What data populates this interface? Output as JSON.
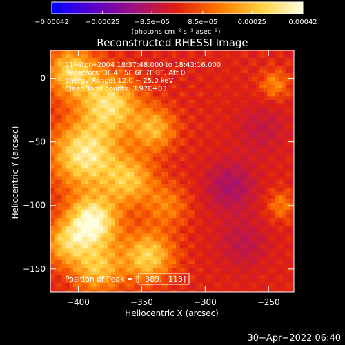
{
  "chart_data": {
    "type": "heatmap",
    "title": "Reconstructed RHESSI Image",
    "xlabel": "Heliocentric X (arcsec)",
    "ylabel": "Heliocentric Y (arcsec)",
    "xlim": [
      -422,
      -230
    ],
    "ylim": [
      -168,
      22
    ],
    "x_ticks": [
      -400,
      -350,
      -300,
      -250
    ],
    "x_tick_labels": [
      "−400",
      "−350",
      "−300",
      "−250"
    ],
    "y_ticks": [
      0,
      -50,
      -100,
      -150
    ],
    "y_tick_labels": [
      "0",
      "−50",
      "−100",
      "−150"
    ],
    "colorbar": {
      "min": -0.00042,
      "max": 0.00042,
      "ticks": [
        -0.00042,
        -0.00025,
        -8.5e-05,
        8.5e-05,
        0.00025,
        0.00042
      ],
      "tick_labels": [
        "−0.00042",
        "−0.00025",
        "−8.5e−05",
        "8.5e−05",
        "0.00025",
        "0.00042"
      ],
      "units": "(photons cm⁻² s⁻¹ asec⁻²)",
      "colors": [
        "#0000ff",
        "#5a00c8",
        "#a0107a",
        "#e02010",
        "#ff7800",
        "#ffd040",
        "#ffffe0"
      ]
    },
    "annotations": [
      "21−Apr−2004 18:37:48.000 to 18:43:16.000",
      "Detectors: 3F 4F 5F 6F 7F 8F, Att 0",
      "Energy Range: 12.0 − 25.0 keV",
      "Clean     Total counts: 3.97E+03"
    ],
    "peak_label": "Position of Peak = [−389,−113]",
    "peak": [
      -389,
      -113
    ],
    "timestamp": "30−Apr−2022 06:40",
    "blobs": [
      {
        "x": -389,
        "y": -113,
        "amp": 1.0,
        "sigma": 14
      },
      {
        "x": -395,
        "y": -60,
        "amp": 0.85,
        "sigma": 18
      },
      {
        "x": -375,
        "y": -20,
        "amp": 0.75,
        "sigma": 16
      },
      {
        "x": -405,
        "y": 5,
        "amp": 0.7,
        "sigma": 14
      },
      {
        "x": -360,
        "y": -80,
        "amp": 0.6,
        "sigma": 14
      },
      {
        "x": -345,
        "y": -140,
        "amp": 0.7,
        "sigma": 14
      },
      {
        "x": -385,
        "y": -150,
        "amp": 0.6,
        "sigma": 14
      },
      {
        "x": -340,
        "y": -40,
        "amp": 0.55,
        "sigma": 12
      },
      {
        "x": -410,
        "y": -130,
        "amp": 0.55,
        "sigma": 12
      },
      {
        "x": -330,
        "y": -100,
        "amp": 0.35,
        "sigma": 12
      },
      {
        "x": -245,
        "y": -5,
        "amp": 0.4,
        "sigma": 8
      },
      {
        "x": -240,
        "y": -100,
        "amp": 0.35,
        "sigma": 8
      },
      {
        "x": -280,
        "y": -85,
        "amp": -0.45,
        "sigma": 14
      },
      {
        "x": -270,
        "y": -130,
        "amp": -0.3,
        "sigma": 14
      },
      {
        "x": -255,
        "y": -40,
        "amp": -0.25,
        "sigma": 14
      }
    ]
  }
}
